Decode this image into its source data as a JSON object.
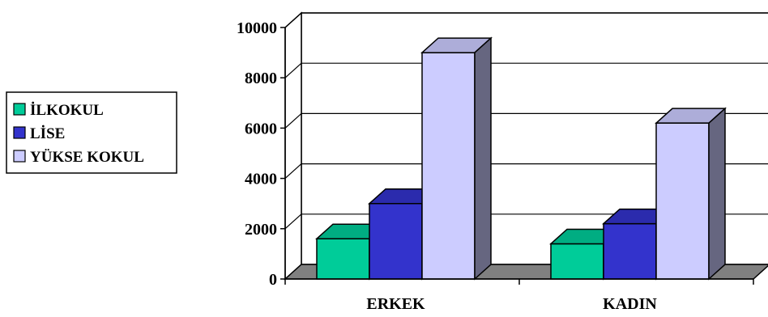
{
  "chart_data": {
    "type": "bar",
    "categories": [
      "ERKEK",
      "KADIN"
    ],
    "series": [
      {
        "name": "İLKOKUL",
        "values": [
          1600,
          1400
        ],
        "color": "#00CC99"
      },
      {
        "name": "LİSE",
        "values": [
          3000,
          2200
        ],
        "color": "#3333CC"
      },
      {
        "name": "YÜKSE KOKUL",
        "values": [
          9000,
          6200
        ],
        "color": "#CCCCFF"
      }
    ],
    "yticks": [
      "0",
      "2000",
      "4000",
      "6000",
      "8000",
      "10000"
    ],
    "ylim": [
      0,
      10000
    ],
    "grid": true,
    "legend_position": "left",
    "three_d": true
  }
}
